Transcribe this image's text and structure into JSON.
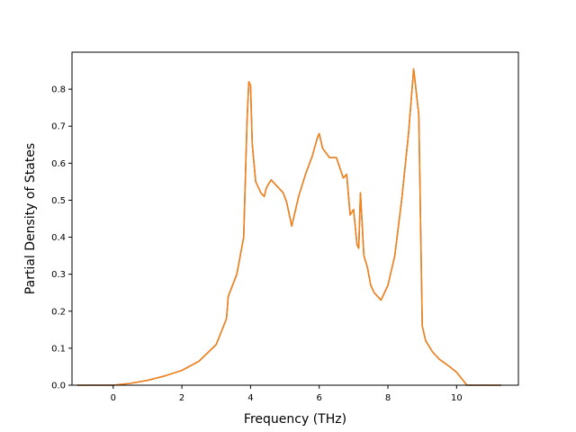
{
  "chart_data": {
    "type": "line",
    "title": "",
    "xlabel": "Frequency (THz)",
    "ylabel": "Partial Density of States",
    "xlim": [
      -1.2,
      11.8
    ],
    "ylim": [
      0.0,
      0.9
    ],
    "xticks": [
      0,
      2,
      4,
      6,
      8,
      10
    ],
    "yticks": [
      0.0,
      0.1,
      0.2,
      0.3,
      0.4,
      0.5,
      0.6,
      0.7,
      0.8
    ],
    "grid": false,
    "legend": "none",
    "series": [
      {
        "color": "#1f77b4",
        "linewidth": 1.5,
        "x": [
          -1.05,
          0.0,
          0.5,
          1.0,
          1.5,
          2.0,
          2.5,
          3.0,
          3.3,
          3.35,
          3.6,
          3.8,
          3.9,
          3.95,
          4.0,
          4.05,
          4.15,
          4.3,
          4.4,
          4.45,
          4.5,
          4.6,
          4.8,
          4.95,
          5.05,
          5.2,
          5.4,
          5.6,
          5.8,
          5.95,
          6.0,
          6.1,
          6.3,
          6.5,
          6.7,
          6.8,
          6.9,
          7.0,
          7.1,
          7.15,
          7.2,
          7.3,
          7.4,
          7.5,
          7.6,
          7.8,
          8.0,
          8.2,
          8.4,
          8.6,
          8.75,
          8.9,
          9.0,
          9.1,
          9.3,
          9.5,
          9.8,
          10.0,
          10.3,
          10.5,
          11.3
        ],
        "y": [
          0.0,
          0.0,
          0.005,
          0.013,
          0.025,
          0.04,
          0.065,
          0.11,
          0.18,
          0.24,
          0.3,
          0.4,
          0.72,
          0.82,
          0.81,
          0.65,
          0.55,
          0.52,
          0.51,
          0.53,
          0.54,
          0.555,
          0.535,
          0.52,
          0.495,
          0.43,
          0.51,
          0.57,
          0.62,
          0.67,
          0.68,
          0.64,
          0.615,
          0.615,
          0.56,
          0.57,
          0.46,
          0.475,
          0.38,
          0.37,
          0.52,
          0.35,
          0.32,
          0.27,
          0.25,
          0.23,
          0.27,
          0.35,
          0.5,
          0.68,
          0.855,
          0.73,
          0.16,
          0.12,
          0.09,
          0.07,
          0.05,
          0.035,
          0.0,
          0.0,
          0.0
        ]
      },
      {
        "color": "#ff7f0e",
        "linewidth": 1.5,
        "x": [
          -1.05,
          0.0,
          0.5,
          1.0,
          1.5,
          2.0,
          2.5,
          3.0,
          3.3,
          3.35,
          3.6,
          3.8,
          3.9,
          3.95,
          4.0,
          4.05,
          4.15,
          4.3,
          4.4,
          4.45,
          4.5,
          4.6,
          4.8,
          4.95,
          5.05,
          5.2,
          5.4,
          5.6,
          5.8,
          5.95,
          6.0,
          6.1,
          6.3,
          6.5,
          6.7,
          6.8,
          6.9,
          7.0,
          7.1,
          7.15,
          7.2,
          7.3,
          7.4,
          7.5,
          7.6,
          7.8,
          8.0,
          8.2,
          8.4,
          8.6,
          8.75,
          8.9,
          9.0,
          9.1,
          9.3,
          9.5,
          9.8,
          10.0,
          10.3,
          10.5,
          11.3
        ],
        "y": [
          0.0,
          0.0,
          0.005,
          0.013,
          0.025,
          0.04,
          0.065,
          0.11,
          0.18,
          0.24,
          0.3,
          0.4,
          0.72,
          0.82,
          0.81,
          0.65,
          0.55,
          0.52,
          0.51,
          0.53,
          0.54,
          0.555,
          0.535,
          0.52,
          0.495,
          0.43,
          0.51,
          0.57,
          0.62,
          0.67,
          0.68,
          0.64,
          0.615,
          0.615,
          0.56,
          0.57,
          0.46,
          0.475,
          0.38,
          0.37,
          0.52,
          0.35,
          0.32,
          0.27,
          0.25,
          0.23,
          0.27,
          0.35,
          0.5,
          0.68,
          0.855,
          0.73,
          0.16,
          0.12,
          0.09,
          0.07,
          0.05,
          0.035,
          0.0,
          0.0,
          0.0
        ]
      }
    ]
  }
}
